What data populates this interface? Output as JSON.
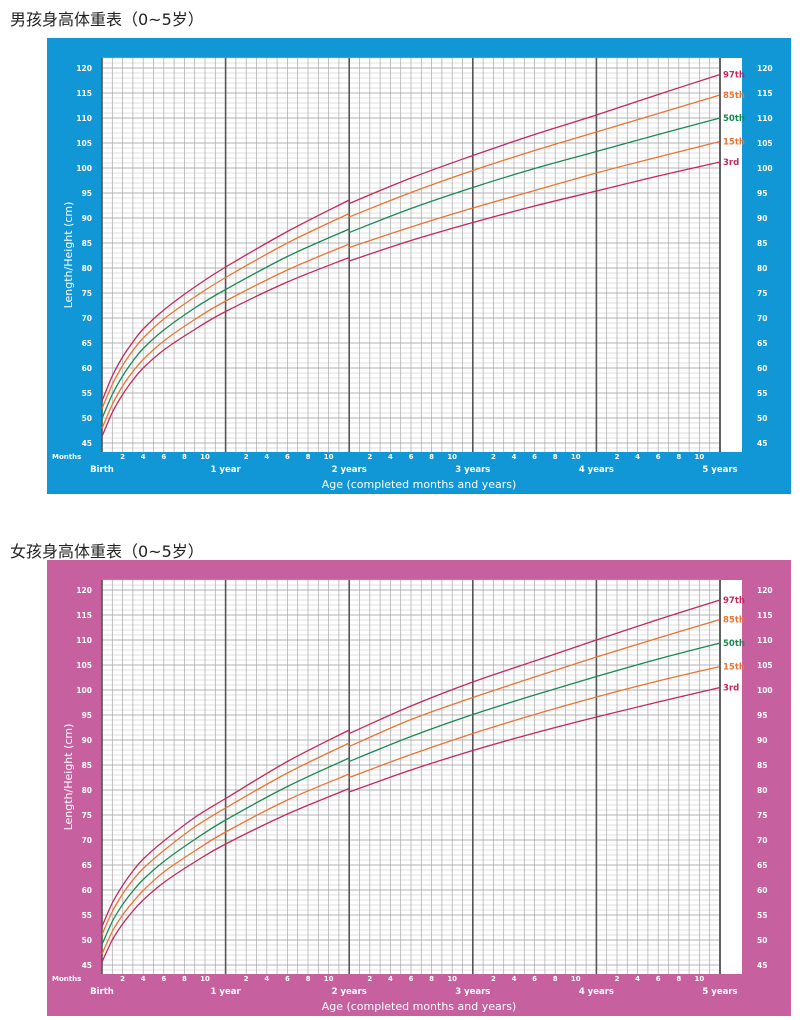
{
  "chart_data": [
    {
      "type": "line",
      "title": "男孩身高体重表（0~5岁）",
      "frame_color": "#1196d6",
      "ylabel": "Length/Height (cm)",
      "xlabel": "Age (completed months and years)",
      "months_label": "Months",
      "ylim": [
        45,
        120
      ],
      "xlim_months": [
        0,
        60
      ],
      "grid": true,
      "yticks": [
        45,
        50,
        55,
        60,
        65,
        70,
        75,
        80,
        85,
        90,
        95,
        100,
        105,
        110,
        115,
        120
      ],
      "month_ticks": [
        "2",
        "4",
        "6",
        "8",
        "10"
      ],
      "year_labels": [
        "Birth",
        "1 year",
        "2 years",
        "3 years",
        "4 years",
        "5 years"
      ],
      "length_months": [
        0,
        1,
        2,
        3,
        4,
        6,
        9,
        12,
        18,
        24
      ],
      "height_months": [
        24,
        30,
        36,
        42,
        48,
        54,
        60
      ],
      "series": [
        {
          "name": "97th",
          "color": "#c4285c",
          "length": [
            53.4,
            58.4,
            62.2,
            65.2,
            67.8,
            71.6,
            76.2,
            80.2,
            87.3,
            93.6
          ],
          "height": [
            92.9,
            98.0,
            102.5,
            106.7,
            110.6,
            114.7,
            118.7
          ]
        },
        {
          "name": "85th",
          "color": "#ea7434",
          "length": [
            51.9,
            56.7,
            60.5,
            63.5,
            66.0,
            69.8,
            74.2,
            78.1,
            85.0,
            90.9
          ],
          "height": [
            90.2,
            95.1,
            99.5,
            103.5,
            107.2,
            110.9,
            114.6
          ]
        },
        {
          "name": "50th",
          "color": "#1a8a52",
          "length": [
            49.9,
            54.7,
            58.4,
            61.4,
            63.9,
            67.6,
            72.0,
            75.7,
            82.3,
            87.8
          ],
          "height": [
            87.1,
            91.9,
            96.1,
            99.9,
            103.3,
            106.7,
            110.0
          ]
        },
        {
          "name": "15th",
          "color": "#ea7434",
          "length": [
            47.9,
            52.7,
            56.4,
            59.3,
            61.7,
            65.4,
            69.7,
            73.4,
            79.6,
            84.8
          ],
          "height": [
            84.1,
            88.2,
            92.0,
            95.5,
            99.0,
            102.2,
            105.3
          ]
        },
        {
          "name": "3rd",
          "color": "#c4285c",
          "length": [
            46.3,
            51.1,
            54.7,
            57.6,
            60.0,
            63.6,
            67.7,
            71.3,
            77.2,
            82.1
          ],
          "height": [
            81.4,
            85.5,
            89.1,
            92.4,
            95.4,
            98.4,
            101.2
          ]
        }
      ]
    },
    {
      "type": "line",
      "title": "女孩身高体重表（0~5岁）",
      "frame_color": "#c6609f",
      "ylabel": "Length/Height (cm)",
      "xlabel": "Age (completed months and years)",
      "months_label": "Months",
      "ylim": [
        45,
        120
      ],
      "xlim_months": [
        0,
        60
      ],
      "grid": true,
      "yticks": [
        45,
        50,
        55,
        60,
        65,
        70,
        75,
        80,
        85,
        90,
        95,
        100,
        105,
        110,
        115,
        120
      ],
      "month_ticks": [
        "2",
        "4",
        "6",
        "8",
        "10"
      ],
      "year_labels": [
        "Birth",
        "1 year",
        "2 years",
        "3 years",
        "4 years",
        "5 years"
      ],
      "length_months": [
        0,
        1,
        2,
        3,
        4,
        6,
        9,
        12,
        18,
        24
      ],
      "height_months": [
        24,
        30,
        36,
        42,
        48,
        54,
        60
      ],
      "series": [
        {
          "name": "97th",
          "color": "#c4285c",
          "length": [
            52.7,
            57.4,
            60.9,
            63.8,
            66.2,
            69.8,
            74.5,
            78.3,
            85.7,
            92.0
          ],
          "height": [
            91.3,
            96.8,
            101.6,
            105.8,
            110.0,
            114.1,
            118.0
          ]
        },
        {
          "name": "85th",
          "color": "#ea7434",
          "length": [
            51.1,
            55.7,
            59.2,
            62.0,
            64.3,
            67.9,
            72.6,
            76.4,
            83.4,
            89.4
          ],
          "height": [
            88.7,
            94.1,
            98.5,
            102.6,
            106.6,
            110.4,
            114.1
          ]
        },
        {
          "name": "50th",
          "color": "#1a8a52",
          "length": [
            49.1,
            53.7,
            57.1,
            59.8,
            62.1,
            65.7,
            70.1,
            74.0,
            80.7,
            86.4
          ],
          "height": [
            85.7,
            90.7,
            95.1,
            99.0,
            102.7,
            106.2,
            109.4
          ]
        },
        {
          "name": "15th",
          "color": "#ea7434",
          "length": [
            47.2,
            51.7,
            55.0,
            57.6,
            59.9,
            63.6,
            67.8,
            71.6,
            78.0,
            83.2
          ],
          "height": [
            82.5,
            87.1,
            91.3,
            95.1,
            98.6,
            101.8,
            104.7
          ]
        },
        {
          "name": "3rd",
          "color": "#c4285c",
          "length": [
            45.6,
            50.0,
            53.2,
            55.8,
            58.0,
            61.5,
            65.6,
            69.2,
            75.2,
            80.3
          ],
          "height": [
            79.6,
            84.0,
            87.9,
            91.4,
            94.6,
            97.6,
            100.5
          ]
        }
      ]
    }
  ]
}
